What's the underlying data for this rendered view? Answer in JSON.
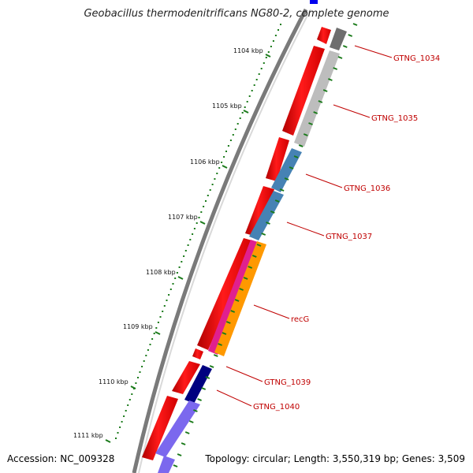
{
  "title": "Geobacillus thermodenitrificans NG80-2, complete genome",
  "footer": {
    "accession": "Accession: NC_009328",
    "summary": "Topology: circular; Length: 3,550,319 bp; Genes: 3,509"
  },
  "scale": {
    "ticks": [
      "1104 kbp",
      "1105 kbp",
      "1106 kbp",
      "1107 kbp",
      "1108 kbp",
      "1109 kbp",
      "1110 kbp",
      "1111 kbp"
    ]
  },
  "genes": [
    {
      "name": "GTNG_1034",
      "color": "#6e6e6e"
    },
    {
      "name": "GTNG_1035",
      "color": "#bdbdbd"
    },
    {
      "name": "GTNG_1036",
      "color": "#4682b4"
    },
    {
      "name": "GTNG_1037",
      "color": "#4682b4"
    },
    {
      "name": "recG",
      "color": "#ff9900"
    },
    {
      "name": "GTNG_1039",
      "color": "#000080"
    },
    {
      "name": "GTNG_1040",
      "color": "#7b68ee"
    }
  ],
  "colors": {
    "cds_forward": "#ff0000",
    "backbone": "#808080",
    "tick": "#1a7a1a",
    "label": "#c00000",
    "magenta": "#e0208e"
  }
}
